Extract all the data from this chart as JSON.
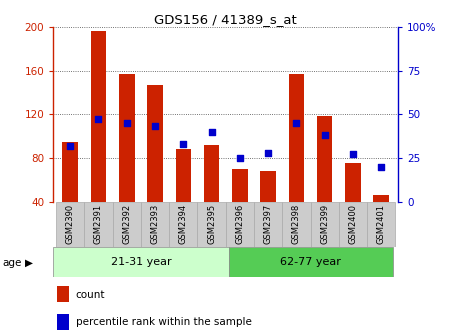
{
  "title": "GDS156 / 41389_s_at",
  "samples": [
    "GSM2390",
    "GSM2391",
    "GSM2392",
    "GSM2393",
    "GSM2394",
    "GSM2395",
    "GSM2396",
    "GSM2397",
    "GSM2398",
    "GSM2399",
    "GSM2400",
    "GSM2401"
  ],
  "count_values": [
    95,
    196,
    157,
    147,
    88,
    92,
    70,
    68,
    157,
    118,
    75,
    46
  ],
  "percentile_values": [
    32,
    47,
    45,
    43,
    33,
    40,
    25,
    28,
    45,
    38,
    27,
    20
  ],
  "ylim_left": [
    40,
    200
  ],
  "ylim_right": [
    0,
    100
  ],
  "yticks_left": [
    40,
    80,
    120,
    160,
    200
  ],
  "yticks_right": [
    0,
    25,
    50,
    75,
    100
  ],
  "group1_label": "21-31 year",
  "group2_label": "62-77 year",
  "age_label": "age",
  "legend_count": "count",
  "legend_percentile": "percentile rank within the sample",
  "bar_color": "#CC2200",
  "dot_color": "#0000CC",
  "group1_bg": "#CCFFCC",
  "group2_bg": "#55CC55",
  "label_bg": "#CCCCCC",
  "label_border": "#AAAAAA"
}
